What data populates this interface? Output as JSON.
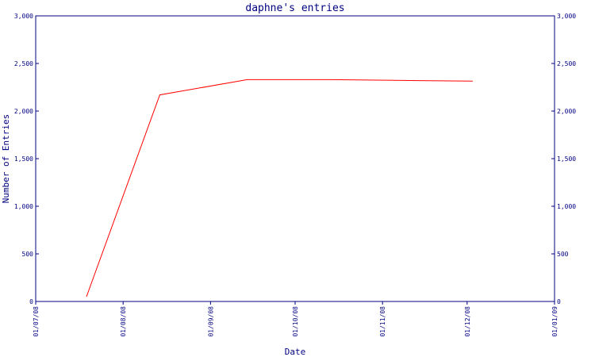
{
  "chart_data": {
    "type": "line",
    "title": "daphne's entries",
    "xlabel": "Date",
    "ylabel": "Number of Entries",
    "ylim": [
      0,
      3000
    ],
    "y_ticks": [
      0,
      500,
      1000,
      1500,
      2000,
      2500,
      3000
    ],
    "y_tick_labels": [
      "0",
      "500",
      "1,000",
      "1,500",
      "2,000",
      "2,500",
      "3,000"
    ],
    "xlim": [
      "2008-07-01",
      "2009-01-01"
    ],
    "x_ticks": [
      "2008-07-01",
      "2008-08-01",
      "2008-09-01",
      "2008-10-01",
      "2008-11-01",
      "2008-12-01",
      "2009-01-01"
    ],
    "x_tick_labels": [
      "01/07/08",
      "01/08/08",
      "01/09/08",
      "01/10/08",
      "01/11/08",
      "01/12/08",
      "01/01/09"
    ],
    "grid": false,
    "series": [
      {
        "color": "#ff0000",
        "x": [
          "2008-07-19",
          "2008-08-14",
          "2008-09-14",
          "2008-10-14",
          "2008-11-14",
          "2008-12-03"
        ],
        "y": [
          50,
          2170,
          2330,
          2330,
          2320,
          2315
        ]
      }
    ]
  }
}
